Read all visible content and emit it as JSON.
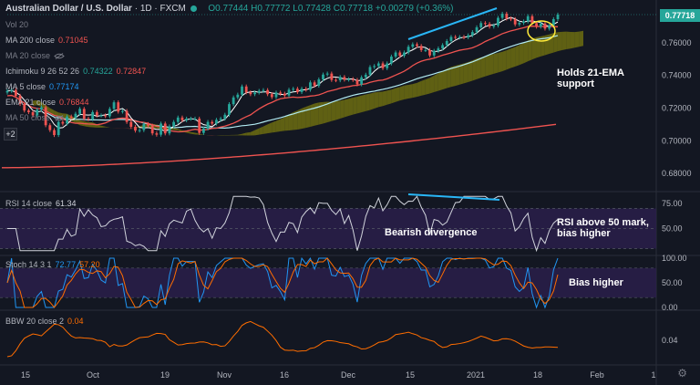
{
  "header": {
    "symbol": "Australian Dollar / U.S. Dollar",
    "interval": "1D",
    "exchange": "FXCM",
    "ohlc": "O0.77444 H0.77772 L0.77428 C0.77718 +0.00279 (+0.36%)"
  },
  "indicators": {
    "vol": {
      "label": "Vol 20"
    },
    "ma200": {
      "label": "MA 200 close",
      "value": "0.71045"
    },
    "ma20": {
      "label": "MA 20 close"
    },
    "ichimoku": {
      "label": "Ichimoku 9 26 52 26",
      "v1": "0.74322",
      "v2": "0.72847"
    },
    "ma5": {
      "label": "MA 5 close",
      "value": "0.77174"
    },
    "ema21": {
      "label": "EMA 21 close",
      "value": "0.76844"
    },
    "ma50": {
      "label": "MA 50 close"
    }
  },
  "rsi": {
    "label": "RSI 14 close",
    "value": "61.34"
  },
  "stoch": {
    "label": "Stoch 14 3 1",
    "k": "72.77",
    "d": "57.20"
  },
  "bbw": {
    "label": "BBW 20 close 2",
    "value": "0.04"
  },
  "annotations": {
    "holds": [
      "Holds 21-EMA",
      "support"
    ],
    "bearish": "Bearish divergence",
    "rsi_note": [
      "RSI above 50 mark,",
      "bias higher"
    ],
    "bias": "Bias higher"
  },
  "current_price": "0.77718",
  "plus_label": "+2",
  "colors": {
    "up": "#26a69a",
    "down": "#ef5350",
    "ema21": "#ef5350",
    "ma200": "#ef5350",
    "ma5": "#ffffff",
    "ma50": "#b2ebf2",
    "cloud_up": "#7a7a0f",
    "cloud_down": "#7a3a32",
    "rsi": "#d1d4dc",
    "stoch_k": "#2196f3",
    "stoch_d": "#ff6d00",
    "bbw": "#ff6d00",
    "divergence": "#29b6f6",
    "band": "#2a1e4a"
  },
  "chart_data": {
    "type": "line",
    "title": "Australian Dollar / U.S. Dollar · 1D · FXCM",
    "price_axis": {
      "ylim": [
        0.67,
        0.785
      ],
      "ticks": [
        "0.76000",
        "0.74000",
        "0.72000",
        "0.70000",
        "0.68000"
      ]
    },
    "x_ticks": [
      "15",
      "Oct",
      "19",
      "Nov",
      "16",
      "Dec",
      "15",
      "2021",
      "18",
      "Feb",
      "1"
    ],
    "rsi_axis": {
      "ticks": [
        "75.00",
        "50.00"
      ]
    },
    "stoch_axis": {
      "ticks": [
        "100.00",
        "50.00",
        "0.00"
      ]
    },
    "bbw_axis": {
      "ticks": [
        "0.04"
      ]
    },
    "price_close": [
      0.7305,
      0.731,
      0.7275,
      0.7225,
      0.7185,
      0.7175,
      0.7155,
      0.719,
      0.7205,
      0.7095,
      0.7065,
      0.7035,
      0.7115,
      0.7105,
      0.7148,
      0.714,
      0.7165,
      0.7195,
      0.7135,
      0.7132,
      0.7175,
      0.7155,
      0.7155,
      0.715,
      0.7195,
      0.7235,
      0.7178,
      0.7182,
      0.7115,
      0.7085,
      0.7062,
      0.7065,
      0.7102,
      0.7092,
      0.7045,
      0.7037,
      0.7105,
      0.7045,
      0.7088,
      0.7115,
      0.7142,
      0.7125,
      0.7135,
      0.7135,
      0.7135,
      0.7048,
      0.7075,
      0.7115,
      0.7105,
      0.7128,
      0.7135,
      0.7159,
      0.7224,
      0.7265,
      0.7282,
      0.7332,
      0.7296,
      0.7285,
      0.7295,
      0.7305,
      0.731,
      0.7285,
      0.7267,
      0.7295,
      0.7288,
      0.7277,
      0.7312,
      0.7318,
      0.7298,
      0.7318,
      0.7312,
      0.7357,
      0.7337,
      0.7375,
      0.7405,
      0.7411,
      0.7372,
      0.737,
      0.739,
      0.7374,
      0.7377,
      0.7372,
      0.7345,
      0.7388,
      0.7404,
      0.7451,
      0.7457,
      0.7473,
      0.7444,
      0.7473,
      0.7515,
      0.754,
      0.752,
      0.754,
      0.7575,
      0.759,
      0.758,
      0.7555,
      0.7555,
      0.7522,
      0.755,
      0.7565,
      0.7585,
      0.761,
      0.7635,
      0.7632,
      0.7635,
      0.7633,
      0.7645,
      0.7665,
      0.7694,
      0.772,
      0.7715,
      0.7698,
      0.7705,
      0.7752,
      0.7777,
      0.7748,
      0.7744,
      0.7712,
      0.7721,
      0.773,
      0.7762,
      0.772,
      0.7698,
      0.7717,
      0.7686,
      0.7704,
      0.7744,
      0.7772
    ],
    "ema21": [
      0.7215,
      0.7218,
      0.7223,
      0.7228,
      0.7228,
      0.7222,
      0.7206,
      0.719,
      0.7178,
      0.7168,
      0.716,
      0.7154,
      0.7152,
      0.7148,
      0.7146,
      0.7147,
      0.7148,
      0.7152,
      0.715,
      0.7148,
      0.714,
      0.7128,
      0.7117,
      0.711,
      0.71,
      0.7095,
      0.7093,
      0.7092,
      0.7095,
      0.7102,
      0.711,
      0.712,
      0.714,
      0.7158,
      0.7172,
      0.7185,
      0.72,
      0.7215,
      0.7232,
      0.7248,
      0.7262,
      0.7278,
      0.7292,
      0.7304,
      0.7316,
      0.733,
      0.7345,
      0.736,
      0.7375,
      0.739,
      0.7405,
      0.742,
      0.7435,
      0.745,
      0.7466,
      0.7482,
      0.7498,
      0.7514,
      0.753,
      0.7546,
      0.7562,
      0.7578,
      0.7594,
      0.761,
      0.7622,
      0.7634,
      0.7646,
      0.7658,
      0.7668,
      0.7676,
      0.7684
    ]
  }
}
